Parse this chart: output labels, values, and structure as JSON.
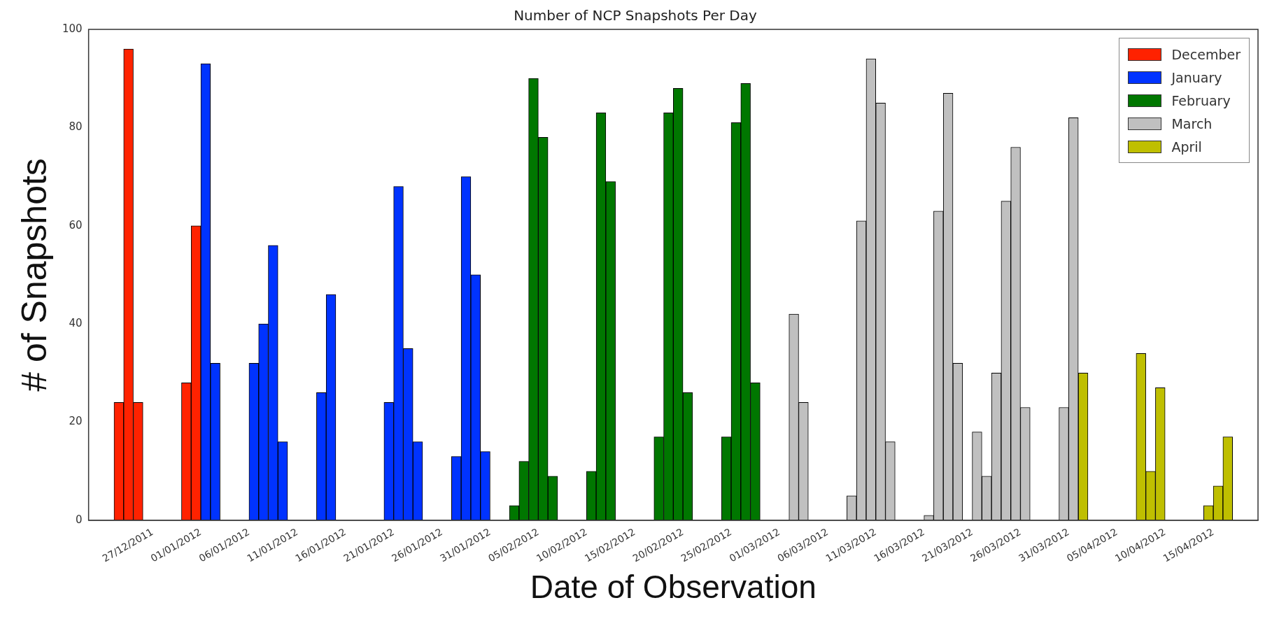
{
  "chart_data": {
    "type": "bar",
    "title": "Number of NCP Snapshots Per Day",
    "xlabel": "Date of Observation",
    "ylabel": "# of Snapshots",
    "xlim": [
      "2011-12-23",
      "2012-04-17"
    ],
    "xticks": [
      {
        "value": "2011-12-27",
        "label": "27/12/2011"
      },
      {
        "value": "2012-01-01",
        "label": "01/01/2012"
      },
      {
        "value": "2012-01-06",
        "label": "06/01/2012"
      },
      {
        "value": "2012-01-11",
        "label": "11/01/2012"
      },
      {
        "value": "2012-01-16",
        "label": "16/01/2012"
      },
      {
        "value": "2012-01-21",
        "label": "21/01/2012"
      },
      {
        "value": "2012-01-26",
        "label": "26/01/2012"
      },
      {
        "value": "2012-01-31",
        "label": "31/01/2012"
      },
      {
        "value": "2012-02-05",
        "label": "05/02/2012"
      },
      {
        "value": "2012-02-10",
        "label": "10/02/2012"
      },
      {
        "value": "2012-02-15",
        "label": "15/02/2012"
      },
      {
        "value": "2012-02-20",
        "label": "20/02/2012"
      },
      {
        "value": "2012-02-25",
        "label": "25/02/2012"
      },
      {
        "value": "2012-03-01",
        "label": "01/03/2012"
      },
      {
        "value": "2012-03-06",
        "label": "06/03/2012"
      },
      {
        "value": "2012-03-11",
        "label": "11/03/2012"
      },
      {
        "value": "2012-03-16",
        "label": "16/03/2012"
      },
      {
        "value": "2012-03-21",
        "label": "21/03/2012"
      },
      {
        "value": "2012-03-26",
        "label": "26/03/2012"
      },
      {
        "value": "2012-03-31",
        "label": "31/03/2012"
      },
      {
        "value": "2012-04-05",
        "label": "05/04/2012"
      },
      {
        "value": "2012-04-10",
        "label": "10/04/2012"
      },
      {
        "value": "2012-04-15",
        "label": "15/04/2012"
      }
    ],
    "ylim": [
      0,
      100
    ],
    "yticks": [
      0,
      20,
      40,
      60,
      80,
      100
    ],
    "grid": false,
    "legend": "top right",
    "series": [
      {
        "name": "December",
        "color": "#ff2200",
        "x": [
          "2011-12-23",
          "2011-12-24",
          "2011-12-25",
          "2011-12-30",
          "2011-12-31"
        ],
        "values": [
          24,
          96,
          24,
          28,
          60
        ]
      },
      {
        "name": "January",
        "color": "#0033ff",
        "x": [
          "2012-01-01",
          "2012-01-02",
          "2012-01-06",
          "2012-01-07",
          "2012-01-08",
          "2012-01-09",
          "2012-01-13",
          "2012-01-14",
          "2012-01-20",
          "2012-01-21",
          "2012-01-22",
          "2012-01-23",
          "2012-01-27",
          "2012-01-28",
          "2012-01-29",
          "2012-01-30"
        ],
        "values": [
          93,
          32,
          32,
          40,
          56,
          16,
          26,
          46,
          24,
          68,
          35,
          16,
          13,
          70,
          50,
          14
        ]
      },
      {
        "name": "February",
        "color": "#007700",
        "x": [
          "2012-02-02",
          "2012-02-03",
          "2012-02-04",
          "2012-02-05",
          "2012-02-06",
          "2012-02-10",
          "2012-02-11",
          "2012-02-12",
          "2012-02-17",
          "2012-02-18",
          "2012-02-19",
          "2012-02-20",
          "2012-02-24",
          "2012-02-25",
          "2012-02-26",
          "2012-02-27"
        ],
        "values": [
          3,
          12,
          90,
          78,
          9,
          10,
          83,
          69,
          17,
          83,
          88,
          26,
          17,
          81,
          89,
          28
        ]
      },
      {
        "name": "March",
        "color": "#c0c0c0",
        "x": [
          "2012-03-02",
          "2012-03-03",
          "2012-03-08",
          "2012-03-09",
          "2012-03-10",
          "2012-03-11",
          "2012-03-12",
          "2012-03-16",
          "2012-03-17",
          "2012-03-18",
          "2012-03-19",
          "2012-03-21",
          "2012-03-22",
          "2012-03-23",
          "2012-03-24",
          "2012-03-25",
          "2012-03-26",
          "2012-03-30",
          "2012-03-31"
        ],
        "values": [
          42,
          24,
          5,
          61,
          94,
          85,
          16,
          1,
          63,
          87,
          32,
          18,
          9,
          30,
          65,
          76,
          23,
          23,
          82
        ]
      },
      {
        "name": "April",
        "color": "#bfbf00",
        "x": [
          "2012-04-01",
          "2012-04-07",
          "2012-04-08",
          "2012-04-09",
          "2012-04-14",
          "2012-04-15",
          "2012-04-16"
        ],
        "values": [
          30,
          34,
          10,
          27,
          3,
          7,
          17
        ]
      }
    ]
  }
}
